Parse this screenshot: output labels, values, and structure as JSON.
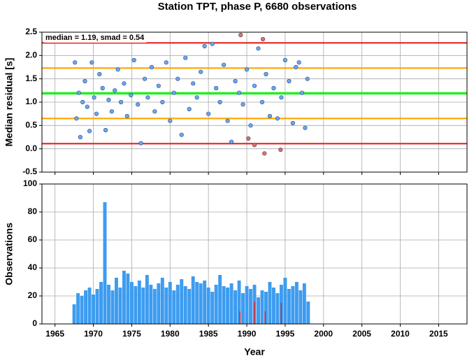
{
  "chart_data": [
    {
      "type": "scatter",
      "title": "Station TPT, phase P, 6680 observations",
      "ylabel": "Median residual [s]",
      "annotation": "median = 1.19, smad = 0.54",
      "xlim": [
        1963.3,
        2018.7
      ],
      "xticks": [
        1965,
        1970,
        1975,
        1980,
        1985,
        1990,
        1995,
        2000,
        2005,
        2010,
        2015
      ],
      "ylim": [
        -0.5,
        2.5
      ],
      "yticks": [
        -0.5,
        {
          "value": 0,
          "label": "0.0"
        },
        0.5,
        {
          "value": 1,
          "label": "1.0"
        },
        1.5,
        {
          "value": 2,
          "label": "2.0"
        },
        2.5
      ],
      "grid": true,
      "lines": [
        {
          "value": 2.27,
          "color": "#e82020"
        },
        {
          "value": 1.73,
          "color": "#ffa500"
        },
        {
          "value": 1.19,
          "color": "#22ee22"
        },
        {
          "value": 0.65,
          "color": "#ffa500"
        },
        {
          "value": 0.11,
          "color": "#e82020"
        }
      ],
      "series": [
        {
          "color": "#6aa6f0",
          "x": [
            1967.6,
            1967.8,
            1968.1,
            1968.3,
            1968.6,
            1968.9,
            1969.2,
            1969.5,
            1969.8,
            1970.1,
            1970.4,
            1970.8,
            1971.2,
            1971.6,
            1972.0,
            1972.4,
            1972.8,
            1973.2,
            1973.6,
            1974.0,
            1974.4,
            1974.9,
            1975.3,
            1975.8,
            1976.2,
            1976.7,
            1977.1,
            1977.6,
            1978.0,
            1978.5,
            1979.0,
            1979.5,
            1980.0,
            1980.5,
            1981.0,
            1981.5,
            1982.0,
            1982.5,
            1983.0,
            1983.5,
            1984.0,
            1984.5,
            1985.0,
            1985.5,
            1986.0,
            1986.5,
            1987.0,
            1987.5,
            1988.0,
            1988.5,
            1989.0,
            1989.5,
            1990.0,
            1990.5,
            1991.0,
            1991.5,
            1992.0,
            1992.5,
            1993.0,
            1993.5,
            1994.0,
            1994.5,
            1995.0,
            1995.5,
            1996.0,
            1996.4,
            1996.8,
            1997.2,
            1997.6,
            1997.9
          ],
          "values": [
            1.85,
            0.65,
            1.2,
            0.25,
            1.0,
            1.45,
            0.9,
            0.38,
            1.85,
            1.1,
            0.75,
            1.6,
            1.3,
            0.4,
            1.05,
            0.8,
            1.25,
            1.7,
            1.0,
            1.4,
            0.7,
            1.15,
            1.9,
            0.95,
            0.12,
            1.5,
            1.1,
            1.75,
            0.8,
            1.35,
            1.0,
            1.85,
            0.6,
            1.2,
            1.5,
            0.3,
            1.95,
            0.85,
            1.4,
            1.1,
            1.65,
            2.2,
            0.75,
            2.25,
            1.3,
            1.0,
            1.8,
            0.6,
            0.15,
            1.45,
            1.2,
            0.95,
            1.7,
            0.5,
            1.35,
            2.15,
            1.0,
            1.6,
            0.7,
            1.3,
            0.65,
            1.1,
            1.9,
            1.45,
            0.55,
            1.75,
            1.85,
            1.2,
            0.45,
            1.5
          ]
        },
        {
          "color": "#f06a5a",
          "x": [
            1989.2,
            1992.1,
            1990.2,
            1991.0,
            1992.3,
            1994.4
          ],
          "values": [
            2.44,
            2.35,
            0.22,
            0.08,
            -0.1,
            -0.02
          ]
        }
      ]
    },
    {
      "type": "bar",
      "ylabel": "Observations",
      "xlabel": "Year",
      "xlim": [
        1963.3,
        2018.7
      ],
      "xticks": [
        1965,
        1970,
        1975,
        1980,
        1985,
        1990,
        1995,
        2000,
        2005,
        2010,
        2015
      ],
      "ylim": [
        0,
        100
      ],
      "yticks": [
        0,
        20,
        40,
        60,
        80,
        100
      ],
      "grid": true,
      "series": [
        {
          "color": "#3d9cf0",
          "x": [
            1967.5,
            1968,
            1968.5,
            1969,
            1969.5,
            1970,
            1970.5,
            1971,
            1971.5,
            1972,
            1972.5,
            1973,
            1973.5,
            1974,
            1974.5,
            1975,
            1975.5,
            1976,
            1976.5,
            1977,
            1977.5,
            1978,
            1978.5,
            1979,
            1979.5,
            1980,
            1980.5,
            1981,
            1981.5,
            1982,
            1982.5,
            1983,
            1983.5,
            1984,
            1984.5,
            1985,
            1985.5,
            1986,
            1986.5,
            1987,
            1987.5,
            1988,
            1988.5,
            1989,
            1989.5,
            1990,
            1990.5,
            1991,
            1991.5,
            1992,
            1992.5,
            1993,
            1993.5,
            1994,
            1994.5,
            1995,
            1995.5,
            1996,
            1996.5,
            1997,
            1997.5,
            1998
          ],
          "values": [
            14,
            22,
            20,
            24,
            26,
            21,
            25,
            30,
            87,
            28,
            24,
            33,
            26,
            38,
            36,
            30,
            27,
            31,
            26,
            35,
            28,
            25,
            29,
            33,
            26,
            30,
            24,
            28,
            32,
            27,
            25,
            34,
            30,
            29,
            31,
            26,
            23,
            28,
            35,
            27,
            26,
            29,
            24,
            31,
            22,
            27,
            25,
            28,
            19,
            24,
            23,
            30,
            26,
            22,
            28,
            33,
            25,
            27,
            30,
            24,
            29,
            16
          ]
        },
        {
          "color": "#e82020",
          "x": [
            1989.1,
            1991.0,
            1992.4,
            1994.5
          ],
          "values": [
            9,
            16,
            9,
            15
          ]
        }
      ]
    }
  ]
}
